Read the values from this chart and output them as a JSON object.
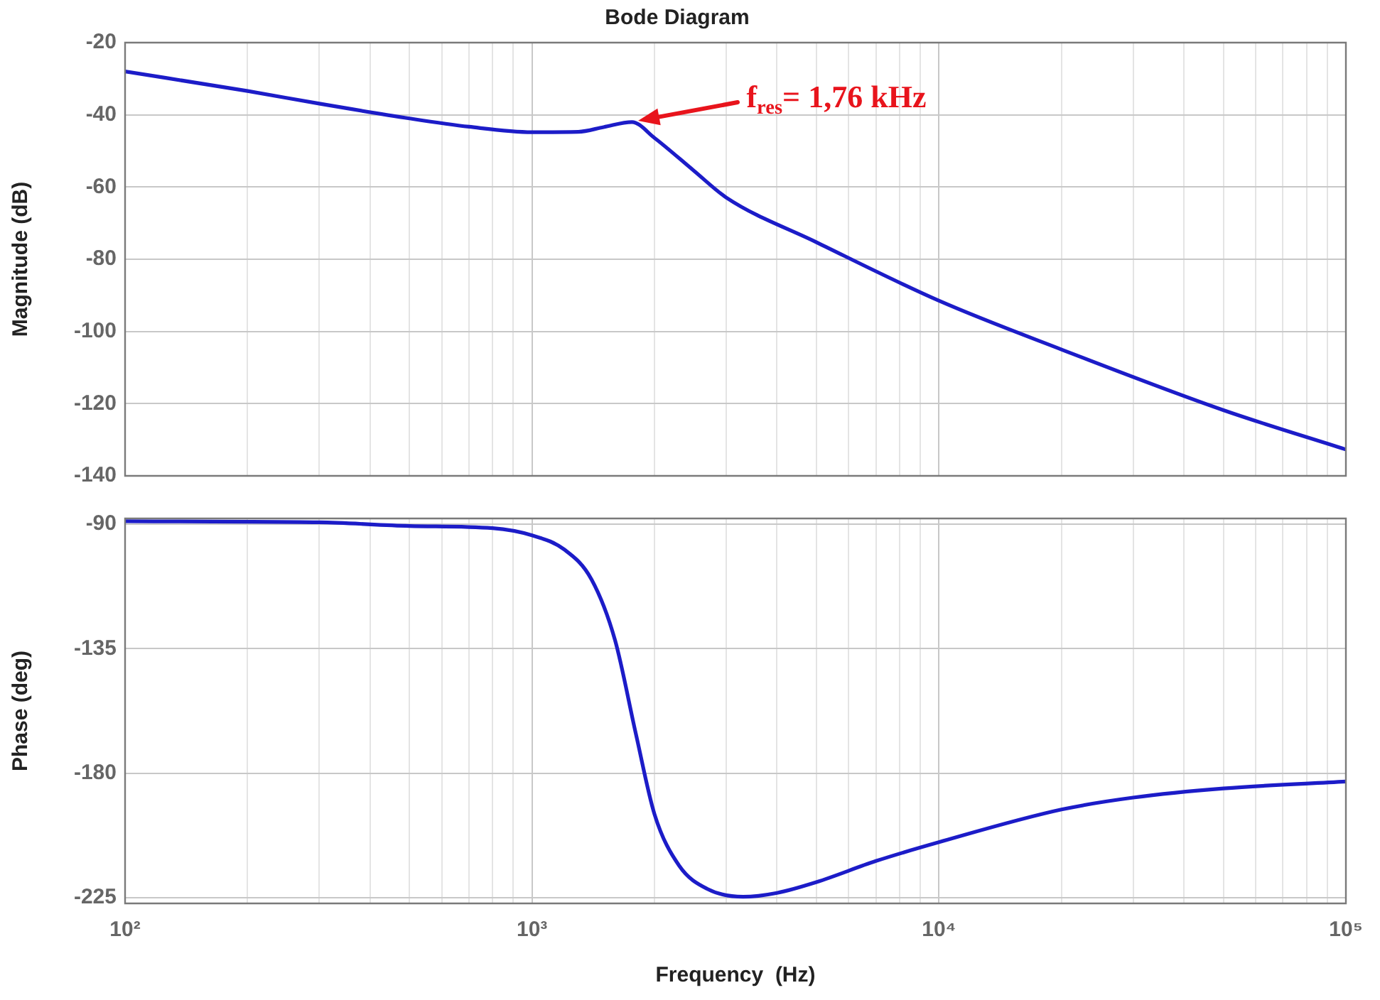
{
  "chart_data": [
    {
      "type": "line",
      "title": "Bode Diagram",
      "ylabel": "Magnitude (dB)",
      "log": "x",
      "grid": true,
      "legend": false,
      "marker": "none",
      "line_style": "solid",
      "tick_labels": "y",
      "xlim": [
        100,
        100000
      ],
      "ylim": [
        -140,
        -20
      ],
      "xticks": [
        {
          "value": 100,
          "label": null
        },
        {
          "value": 200,
          "label": null
        },
        {
          "value": 300,
          "label": null
        },
        {
          "value": 400,
          "label": null
        },
        {
          "value": 500,
          "label": null
        },
        {
          "value": 600,
          "label": null
        },
        {
          "value": 700,
          "label": null
        },
        {
          "value": 800,
          "label": null
        },
        {
          "value": 900,
          "label": null
        },
        {
          "value": 1000,
          "label": null
        },
        {
          "value": 2000,
          "label": null
        },
        {
          "value": 3000,
          "label": null
        },
        {
          "value": 4000,
          "label": null
        },
        {
          "value": 5000,
          "label": null
        },
        {
          "value": 6000,
          "label": null
        },
        {
          "value": 7000,
          "label": null
        },
        {
          "value": 8000,
          "label": null
        },
        {
          "value": 9000,
          "label": null
        },
        {
          "value": 10000,
          "label": null
        },
        {
          "value": 20000,
          "label": null
        },
        {
          "value": 30000,
          "label": null
        },
        {
          "value": 40000,
          "label": null
        },
        {
          "value": 50000,
          "label": null
        },
        {
          "value": 60000,
          "label": null
        },
        {
          "value": 70000,
          "label": null
        },
        {
          "value": 80000,
          "label": null
        },
        {
          "value": 90000,
          "label": null
        },
        {
          "value": 100000,
          "label": null
        }
      ],
      "yticks": [
        -140,
        -120,
        -100,
        -80,
        -60,
        -40,
        -20
      ],
      "x": [
        100,
        200,
        300,
        500,
        700,
        1000,
        1300,
        1500,
        1760,
        2000,
        2500,
        3000,
        5000,
        10000,
        20000,
        50000,
        100000
      ],
      "series": [
        {
          "color": "#1c1cc8",
          "values": [
            -28,
            -33.4,
            -36.9,
            -41,
            -43.3,
            -44.8,
            -44.7,
            -43.4,
            -42,
            -46.4,
            -55.5,
            -62.9,
            -75.3,
            -91.5,
            -105,
            -121.8,
            -132.7
          ]
        }
      ],
      "annotations": [
        "f$_{res}$= 1,76 kHz"
      ]
    },
    {
      "type": "line",
      "xlabel": "Frequency  (Hz)",
      "ylabel": "Phase (deg)",
      "log": "x",
      "grid": true,
      "legend": false,
      "marker": "none",
      "line_style": "solid",
      "xlim": [
        100,
        100000
      ],
      "ylim": [
        -227,
        -88
      ],
      "xticks": [
        {
          "value": 100,
          "label": "10²"
        },
        {
          "value": 200,
          "label": null
        },
        {
          "value": 300,
          "label": null
        },
        {
          "value": 400,
          "label": null
        },
        {
          "value": 500,
          "label": null
        },
        {
          "value": 600,
          "label": null
        },
        {
          "value": 700,
          "label": null
        },
        {
          "value": 800,
          "label": null
        },
        {
          "value": 900,
          "label": null
        },
        {
          "value": 1000,
          "label": "10³"
        },
        {
          "value": 2000,
          "label": null
        },
        {
          "value": 3000,
          "label": null
        },
        {
          "value": 4000,
          "label": null
        },
        {
          "value": 5000,
          "label": null
        },
        {
          "value": 6000,
          "label": null
        },
        {
          "value": 7000,
          "label": null
        },
        {
          "value": 8000,
          "label": null
        },
        {
          "value": 9000,
          "label": null
        },
        {
          "value": 10000,
          "label": "10⁴"
        },
        {
          "value": 20000,
          "label": null
        },
        {
          "value": 30000,
          "label": null
        },
        {
          "value": 40000,
          "label": null
        },
        {
          "value": 50000,
          "label": null
        },
        {
          "value": 60000,
          "label": null
        },
        {
          "value": 70000,
          "label": null
        },
        {
          "value": 80000,
          "label": null
        },
        {
          "value": 90000,
          "label": null
        },
        {
          "value": 100000,
          "label": "10⁵"
        }
      ],
      "yticks": [
        -225,
        -180,
        -135,
        -90
      ],
      "x": [
        100,
        300,
        500,
        800,
        1000,
        1200,
        1400,
        1600,
        1800,
        2000,
        2300,
        2700,
        3300,
        4000,
        5000,
        7000,
        10000,
        20000,
        30000,
        50000,
        100000
      ],
      "series": [
        {
          "color": "#1c1cc8",
          "values": [
            -89,
            -89.4,
            -90.7,
            -91.5,
            -94.1,
            -99.2,
            -110,
            -132,
            -165.8,
            -194.8,
            -213.4,
            -221.8,
            -224.6,
            -223.2,
            -219.3,
            -211.7,
            -204.9,
            -193.1,
            -188.8,
            -185.5,
            -183
          ]
        }
      ]
    }
  ]
}
